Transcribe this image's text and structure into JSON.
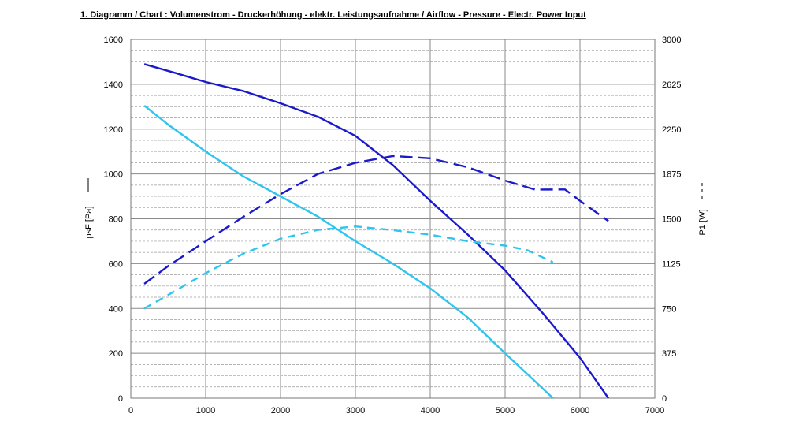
{
  "title": "1. Diagramm / Chart :   Volumenstrom - Druckerhöhung - elektr. Leistungsaufnahme / Airflow - Pressure - Electr. Power Input",
  "chart_data": {
    "type": "line",
    "title": "1. Diagramm / Chart :   Volumenstrom - Druckerhöhung - elektr. Leistungsaufnahme / Airflow - Pressure - Electr. Power Input",
    "xlabel": "",
    "ylabel": "psF [Pa]",
    "y2label": "P1 [W]",
    "xlim": [
      0,
      7000
    ],
    "ylim": [
      0,
      1600
    ],
    "y2lim": [
      0,
      3000
    ],
    "xticks": [
      "0",
      "1000",
      "2000",
      "3000",
      "4000",
      "5000",
      "6000",
      "7000"
    ],
    "yticks": [
      "0",
      "200",
      "400",
      "600",
      "800",
      "1000",
      "1200",
      "1400",
      "1600"
    ],
    "y2ticks": [
      "0",
      "375",
      "750",
      "1125",
      "1500",
      "1875",
      "2250",
      "2625",
      "3000"
    ],
    "grid": true,
    "series": [
      {
        "axis": "left",
        "style": "solid",
        "color": "#1a1acc",
        "points": [
          [
            180,
            1490
          ],
          [
            600,
            1450
          ],
          [
            1000,
            1410
          ],
          [
            1500,
            1370
          ],
          [
            2000,
            1315
          ],
          [
            2500,
            1255
          ],
          [
            3000,
            1170
          ],
          [
            3500,
            1040
          ],
          [
            4000,
            880
          ],
          [
            4500,
            730
          ],
          [
            5000,
            570
          ],
          [
            5500,
            380
          ],
          [
            6000,
            180
          ],
          [
            6380,
            0
          ]
        ]
      },
      {
        "axis": "left",
        "style": "solid",
        "color": "#2ec4ee",
        "points": [
          [
            180,
            1305
          ],
          [
            500,
            1220
          ],
          [
            1000,
            1100
          ],
          [
            1500,
            990
          ],
          [
            2000,
            900
          ],
          [
            2500,
            810
          ],
          [
            3000,
            700
          ],
          [
            3500,
            600
          ],
          [
            4000,
            490
          ],
          [
            4500,
            360
          ],
          [
            5000,
            200
          ],
          [
            5640,
            0
          ]
        ]
      },
      {
        "axis": "right",
        "style": "dashed",
        "color": "#1a1acc",
        "points": [
          [
            180,
            956
          ],
          [
            500,
            1105
          ],
          [
            1000,
            1312
          ],
          [
            1500,
            1515
          ],
          [
            2000,
            1706
          ],
          [
            2500,
            1875
          ],
          [
            3000,
            1968
          ],
          [
            3500,
            2025
          ],
          [
            4000,
            2006
          ],
          [
            4500,
            1931
          ],
          [
            5000,
            1820
          ],
          [
            5400,
            1744
          ],
          [
            5800,
            1745
          ],
          [
            6000,
            1650
          ],
          [
            6380,
            1481
          ]
        ]
      },
      {
        "axis": "right",
        "style": "dashed",
        "color": "#2ec4ee",
        "points": [
          [
            180,
            750
          ],
          [
            500,
            863
          ],
          [
            1000,
            1046
          ],
          [
            1500,
            1207
          ],
          [
            2000,
            1333
          ],
          [
            2500,
            1407
          ],
          [
            3000,
            1436
          ],
          [
            3500,
            1405
          ],
          [
            4000,
            1367
          ],
          [
            4500,
            1313
          ],
          [
            5000,
            1275
          ],
          [
            5300,
            1237
          ],
          [
            5640,
            1136
          ]
        ]
      }
    ]
  }
}
